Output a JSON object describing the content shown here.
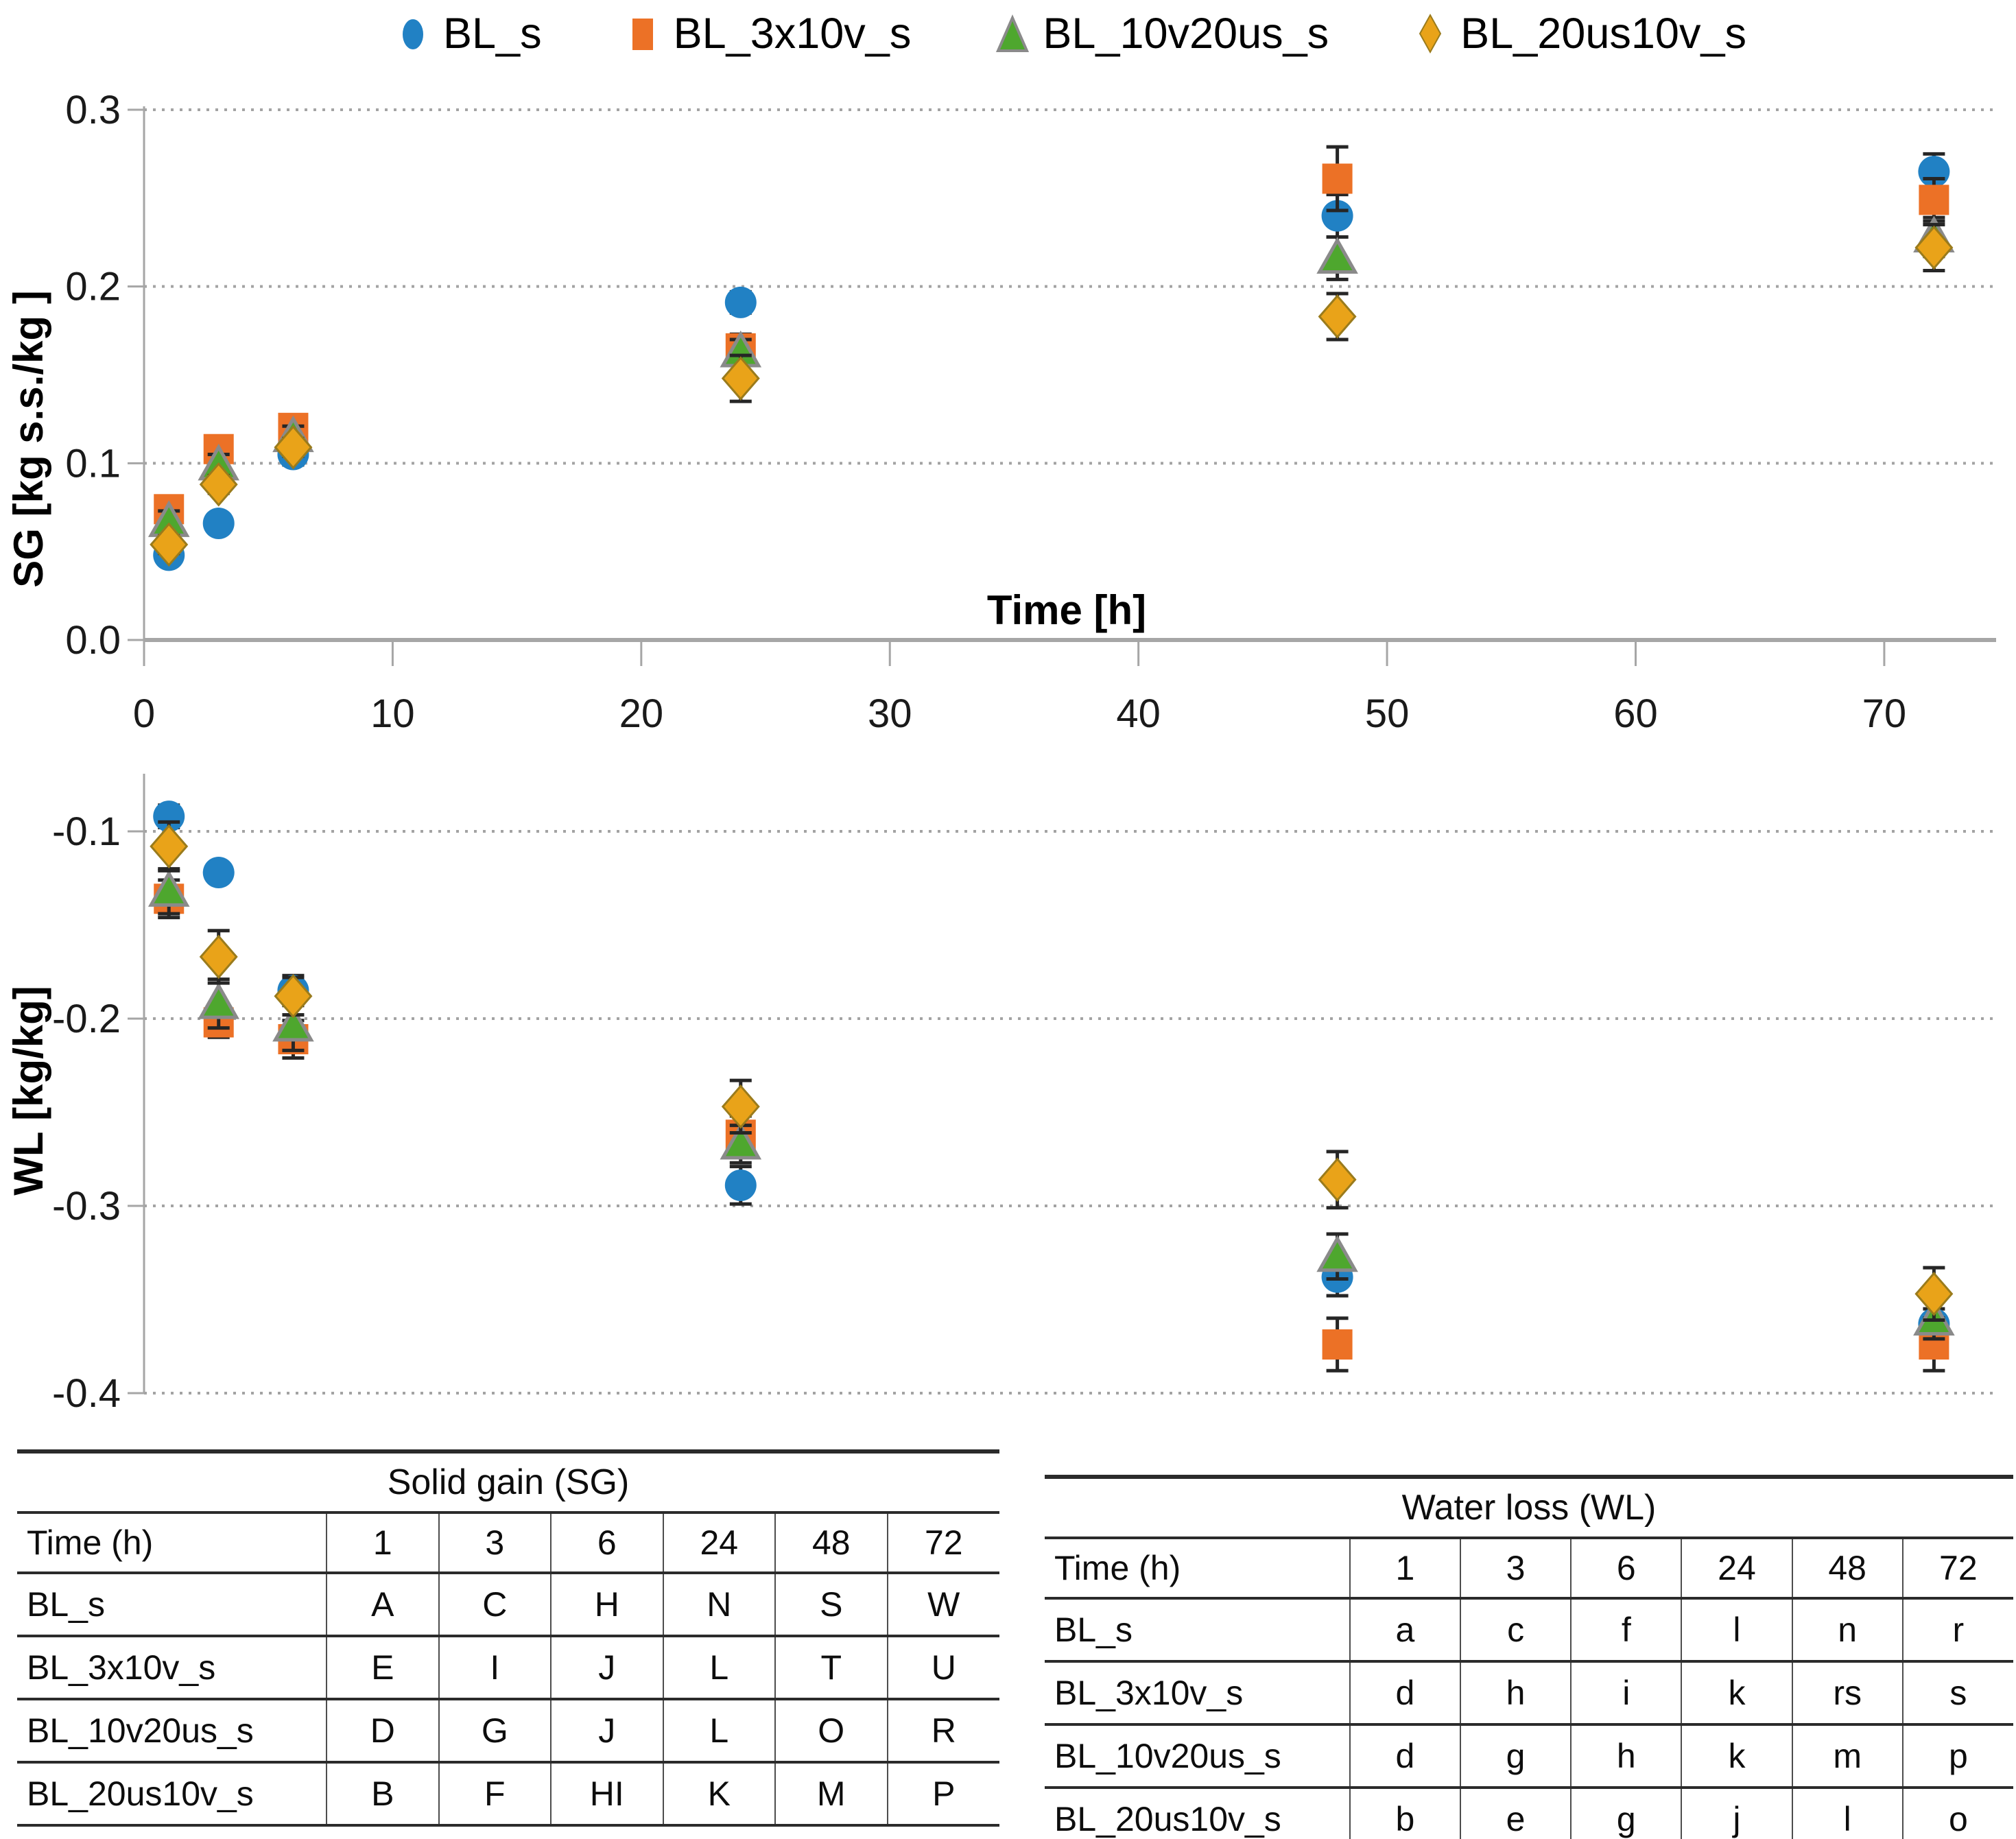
{
  "legend": {
    "items": [
      {
        "label": "BL_s",
        "marker": "circle",
        "color": "#2181C4"
      },
      {
        "label": "BL_3x10v_s",
        "marker": "square",
        "color": "#EC7126"
      },
      {
        "label": "BL_10v20us_s",
        "marker": "triangle",
        "color": "#4EA72E"
      },
      {
        "label": "BL_20us10v_s",
        "marker": "diamond",
        "color": "#E9A319"
      }
    ]
  },
  "colors": {
    "axis": "#a6a6a6",
    "grid": "#a3a3a3",
    "tick_text": "#1a1a1a",
    "error_bar": "#262626",
    "triangle_stroke": "#8a8a8a",
    "diamond_stroke": "#9a7b1c"
  },
  "chart_data": [
    {
      "type": "scatter",
      "panel": "SG",
      "ylabel": "SG [kg s.s./kg ]",
      "xlabel": "Time [h]",
      "xlim": [
        0,
        74.5
      ],
      "ylim": [
        0,
        0.3
      ],
      "grid": "horizontal-dotted",
      "legend_position": "top",
      "xticks": [
        {
          "v": 0,
          "label": "0"
        },
        {
          "v": 10,
          "label": "10"
        },
        {
          "v": 20,
          "label": "20"
        },
        {
          "v": 30,
          "label": "30"
        },
        {
          "v": 40,
          "label": "40"
        },
        {
          "v": 50,
          "label": "50"
        },
        {
          "v": 60,
          "label": "60"
        },
        {
          "v": 70,
          "label": "70"
        }
      ],
      "yticks": [
        {
          "v": 0.3,
          "label": "0.3"
        },
        {
          "v": 0.2,
          "label": "0.2"
        },
        {
          "v": 0.1,
          "label": "0.1"
        },
        {
          "v": 0.0,
          "label": "0.0"
        }
      ],
      "x": [
        1,
        3,
        6,
        24,
        48,
        72
      ],
      "series": [
        {
          "name": "BL_s",
          "marker": "circle",
          "color": "#2181C4",
          "values": [
            0.048,
            0.066,
            0.105,
            0.191,
            0.24,
            0.265
          ],
          "errors": [
            0.005,
            0.005,
            0.006,
            0.006,
            0.012,
            0.01
          ]
        },
        {
          "name": "BL_3x10v_s",
          "marker": "square",
          "color": "#EC7126",
          "values": [
            0.074,
            0.108,
            0.12,
            0.165,
            0.261,
            0.249
          ],
          "errors": [
            0.006,
            0.006,
            0.006,
            0.008,
            0.018,
            0.012
          ]
        },
        {
          "name": "BL_10v20us_s",
          "marker": "triangle",
          "color": "#4EA72E",
          "values": [
            0.067,
            0.099,
            0.115,
            0.163,
            0.216,
            0.228
          ],
          "errors": [
            0.006,
            0.006,
            0.006,
            0.007,
            0.012,
            0.011
          ]
        },
        {
          "name": "BL_20us10v_s",
          "marker": "diamond",
          "color": "#E9A319",
          "values": [
            0.054,
            0.088,
            0.109,
            0.148,
            0.183,
            0.222
          ],
          "errors": [
            0.005,
            0.005,
            0.005,
            0.013,
            0.013,
            0.013
          ]
        }
      ]
    },
    {
      "type": "scatter",
      "panel": "WL",
      "ylabel": "WL [kg/kg]",
      "xlabel": "",
      "xlim": [
        0,
        74.5
      ],
      "ylim": [
        -0.4,
        -0.07
      ],
      "grid": "horizontal-dotted",
      "yticks": [
        {
          "v": -0.1,
          "label": "-0.1"
        },
        {
          "v": -0.2,
          "label": "-0.2"
        },
        {
          "v": -0.3,
          "label": "-0.3"
        },
        {
          "v": -0.4,
          "label": "-0.4"
        }
      ],
      "x": [
        1,
        3,
        6,
        24,
        48,
        72
      ],
      "series": [
        {
          "name": "BL_s",
          "marker": "circle",
          "color": "#2181C4",
          "values": [
            -0.092,
            -0.122,
            -0.185,
            -0.289,
            -0.338,
            -0.363
          ],
          "errors": [
            0.006,
            0.005,
            0.008,
            0.01,
            0.01,
            0.008
          ]
        },
        {
          "name": "BL_3x10v_s",
          "marker": "square",
          "color": "#EC7126",
          "values": [
            -0.136,
            -0.202,
            -0.211,
            -0.262,
            -0.374,
            -0.374
          ],
          "errors": [
            0.01,
            0.008,
            0.01,
            0.01,
            0.014,
            0.014
          ]
        },
        {
          "name": "BL_10v20us_s",
          "marker": "triangle",
          "color": "#4EA72E",
          "values": [
            -0.132,
            -0.192,
            -0.204,
            -0.267,
            -0.327,
            -0.361
          ],
          "errors": [
            0.012,
            0.013,
            0.013,
            0.01,
            0.012,
            0.01
          ]
        },
        {
          "name": "BL_20us10v_s",
          "marker": "diamond",
          "color": "#E9A319",
          "values": [
            -0.108,
            -0.167,
            -0.188,
            -0.247,
            -0.286,
            -0.347
          ],
          "errors": [
            0.013,
            0.014,
            0.01,
            0.014,
            0.015,
            0.014
          ]
        }
      ]
    }
  ],
  "tables": [
    {
      "title": "Solid gain (SG)",
      "header": [
        "Time (h)",
        "1",
        "3",
        "6",
        "24",
        "48",
        "72"
      ],
      "rows": [
        [
          "BL_s",
          "A",
          "C",
          "H",
          "N",
          "S",
          "W"
        ],
        [
          "BL_3x10v_s",
          "E",
          "I",
          "J",
          "L",
          "T",
          "U"
        ],
        [
          "BL_10v20us_s",
          "D",
          "G",
          "J",
          "L",
          "O",
          "R"
        ],
        [
          "BL_20us10v_s",
          "B",
          "F",
          "HI",
          "K",
          "M",
          "P"
        ]
      ]
    },
    {
      "title": "Water loss (WL)",
      "header": [
        "Time (h)",
        "1",
        "3",
        "6",
        "24",
        "48",
        "72"
      ],
      "rows": [
        [
          "BL_s",
          "a",
          "c",
          "f",
          "l",
          "n",
          "r"
        ],
        [
          "BL_3x10v_s",
          "d",
          "h",
          "i",
          "k",
          "rs",
          "s"
        ],
        [
          "BL_10v20us_s",
          "d",
          "g",
          "h",
          "k",
          "m",
          "p"
        ],
        [
          "BL_20us10v_s",
          "b",
          "e",
          "g",
          "j",
          "l",
          "o"
        ]
      ]
    }
  ]
}
